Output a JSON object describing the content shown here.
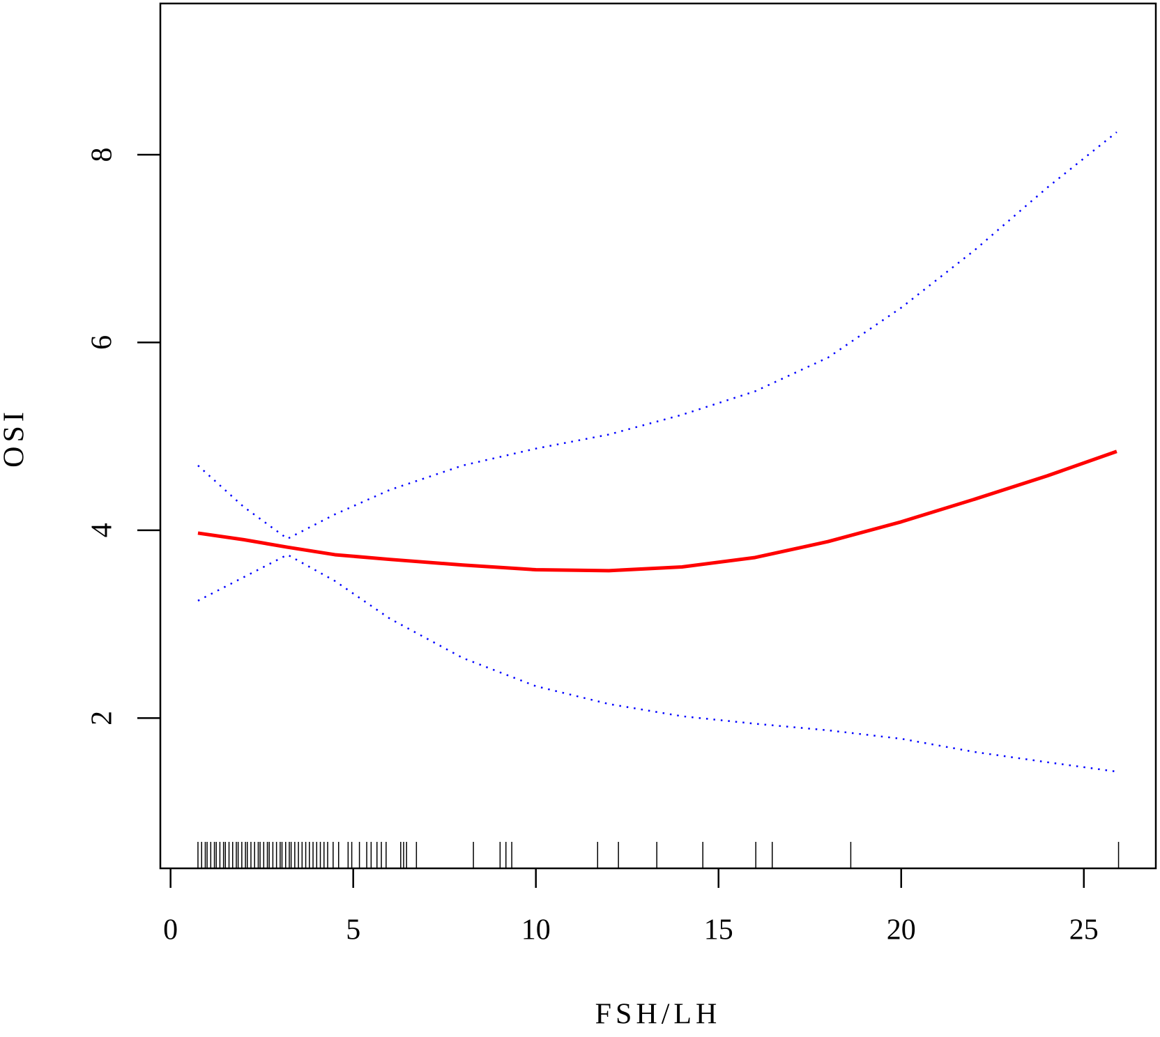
{
  "chart_data": {
    "type": "line",
    "x_label": "FSH/LH",
    "y_label": "OSI",
    "x": [
      0.75,
      2,
      3.2,
      4.5,
      6,
      8,
      10,
      12,
      14,
      16,
      18,
      20,
      22,
      24,
      25.9
    ],
    "series": [
      {
        "color": "#ff0000",
        "line_style": "solid",
        "values": [
          3.97,
          3.9,
          3.82,
          3.74,
          3.69,
          3.63,
          3.58,
          3.57,
          3.61,
          3.71,
          3.88,
          4.09,
          4.33,
          4.58,
          4.84
        ]
      },
      {
        "color": "#0000ff",
        "line_style": "dotted",
        "values": [
          4.69,
          4.25,
          3.91,
          4.17,
          4.43,
          4.69,
          4.87,
          5.02,
          5.23,
          5.48,
          5.84,
          6.37,
          6.98,
          7.65,
          8.24
        ]
      },
      {
        "color": "#0000ff",
        "line_style": "dotted",
        "values": [
          3.25,
          3.5,
          3.74,
          3.46,
          3.06,
          2.64,
          2.34,
          2.15,
          2.02,
          1.94,
          1.87,
          1.78,
          1.64,
          1.53,
          1.43
        ]
      }
    ],
    "rug": [
      0.75,
      0.85,
      0.95,
      1.0,
      1.1,
      1.2,
      1.25,
      1.35,
      1.45,
      1.5,
      1.6,
      1.7,
      1.8,
      1.85,
      1.95,
      2.05,
      2.1,
      2.2,
      2.3,
      2.4,
      2.45,
      2.55,
      2.65,
      2.7,
      2.8,
      2.9,
      3.0,
      3.05,
      3.15,
      3.25,
      3.3,
      3.4,
      3.5,
      3.6,
      3.7,
      3.8,
      3.9,
      4.0,
      4.1,
      4.2,
      4.3,
      4.45,
      4.6,
      4.86,
      4.96,
      5.17,
      5.37,
      5.49,
      5.65,
      5.77,
      5.9,
      6.3,
      6.38,
      6.46,
      6.73,
      8.29,
      9.02,
      9.18,
      9.34,
      11.69,
      12.26,
      13.31,
      14.57,
      16.02,
      16.47,
      18.62,
      25.95
    ],
    "xlim": [
      -0.28,
      26.97
    ],
    "ylim": [
      0.4,
      9.61
    ],
    "xticks": [
      0,
      5,
      10,
      15,
      20,
      25
    ],
    "yticks": [
      2,
      4,
      6,
      8
    ]
  }
}
